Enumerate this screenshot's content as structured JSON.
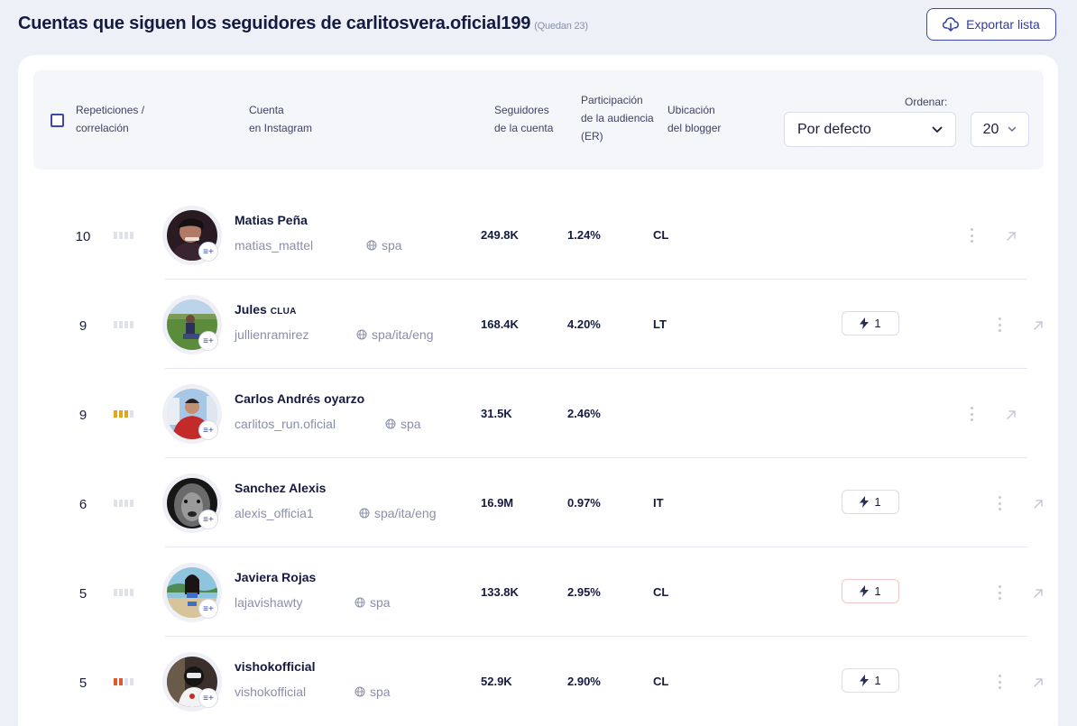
{
  "title": "Cuentas que siguen los seguidores de carlitosvera.oficial199",
  "remaining": "(Quedan 23)",
  "export_label": "Exportar lista",
  "header": {
    "repetitions_line1": "Repeticiones /",
    "repetitions_line2": "correlación",
    "account_line1": "Cuenta",
    "account_line2": "en Instagram",
    "followers_line1": "Seguidores",
    "followers_line2": "de la cuenta",
    "er_line1": "Participación",
    "er_line2": "de la audiencia",
    "er_line3": "(ER)",
    "location_line1": "Ubicación",
    "location_line2": "del blogger",
    "sort_label": "Ordenar:",
    "sort_value": "Por defecto",
    "count_value": "20"
  },
  "colors": {
    "accent": "#3b4aa8",
    "bar_gold": "#e0a91a",
    "bar_red": "#e05a2b",
    "bar_empty": "#e0e2ea"
  },
  "rows": [
    {
      "rep": "10",
      "bars": 0,
      "bar_color": "none",
      "name": "Matias Peña",
      "tag": "",
      "handle": "matias_mattel",
      "lang": "spa",
      "followers": "249.8K",
      "er": "1.24%",
      "location": "CL",
      "boost": "",
      "avatar": "dark-portrait"
    },
    {
      "rep": "9",
      "bars": 0,
      "bar_color": "none",
      "name": "Jules",
      "tag": "CLUA",
      "handle": "jullienramirez",
      "lang": "spa/ita/eng",
      "followers": "168.4K",
      "er": "4.20%",
      "location": "LT",
      "boost": "1",
      "avatar": "field"
    },
    {
      "rep": "9",
      "bars": 3,
      "bar_color": "gold",
      "name": "Carlos Andrés oyarzo",
      "tag": "",
      "handle": "carlitos_run.oficial",
      "lang": "spa",
      "followers": "31.5K",
      "er": "2.46%",
      "location": "",
      "boost": "",
      "avatar": "red-shirt"
    },
    {
      "rep": "6",
      "bars": 0,
      "bar_color": "none",
      "name": "Sanchez Alexis",
      "tag": "",
      "handle": "alexis_officia1",
      "lang": "spa/ita/eng",
      "followers": "16.9M",
      "er": "0.97%",
      "location": "IT",
      "boost": "1",
      "avatar": "lion"
    },
    {
      "rep": "5",
      "bars": 0,
      "bar_color": "none",
      "name": "Javiera Rojas",
      "tag": "",
      "handle": "lajavishawty",
      "lang": "spa",
      "followers": "133.8K",
      "er": "2.95%",
      "location": "CL",
      "boost": "1",
      "avatar": "beach"
    },
    {
      "rep": "5",
      "bars": 2,
      "bar_color": "red",
      "name": "vishokofficial",
      "tag": "",
      "handle": "vishokofficial",
      "lang": "spa",
      "followers": "52.9K",
      "er": "2.90%",
      "location": "CL",
      "boost": "1",
      "avatar": "mask"
    }
  ]
}
